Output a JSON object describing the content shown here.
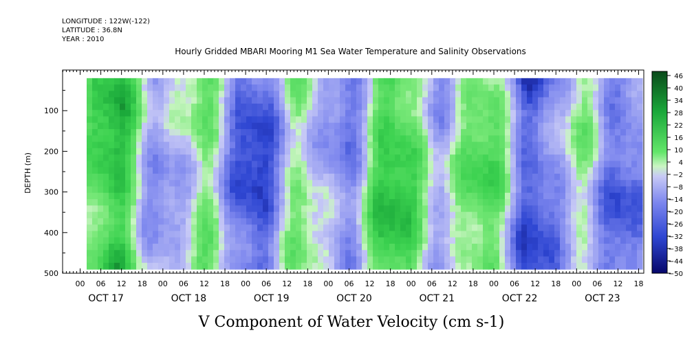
{
  "header": {
    "longitude": "LONGITUDE : 122W(-122)",
    "latitude": "LATITUDE : 36.8N",
    "year": "YEAR : 2010"
  },
  "chart_data": {
    "type": "heatmap",
    "title": "Hourly Gridded MBARI Mooring M1 Sea Water Temperature and Salinity Observations",
    "xlabel": "V Component of Water Velocity (cm s-1)",
    "ylabel": "DEPTH (m)",
    "ylim": [
      500,
      0
    ],
    "y_ticks": [
      100,
      200,
      300,
      400,
      500
    ],
    "x_hour_ticks": [
      "00",
      "06",
      "12",
      "18",
      "00",
      "06",
      "12",
      "18",
      "00",
      "06",
      "12",
      "18",
      "00",
      "06",
      "12",
      "18",
      "00",
      "06",
      "12",
      "18",
      "00",
      "06",
      "12",
      "18",
      "00",
      "06",
      "12",
      "18"
    ],
    "x_day_labels": [
      "OCT 17",
      "OCT 18",
      "OCT 19",
      "OCT 20",
      "OCT 21",
      "OCT 22",
      "OCT 23"
    ],
    "colorbar": {
      "labels": [
        "46",
        "40",
        "34",
        "28",
        "22",
        "16",
        "10",
        "4",
        "-2",
        "-8",
        "-14",
        "-20",
        "-26",
        "-32",
        "-38",
        "-44",
        "-50"
      ],
      "range": [
        -50,
        48
      ]
    },
    "data_extent": {
      "depth_min": 20,
      "depth_max": 490
    }
  }
}
